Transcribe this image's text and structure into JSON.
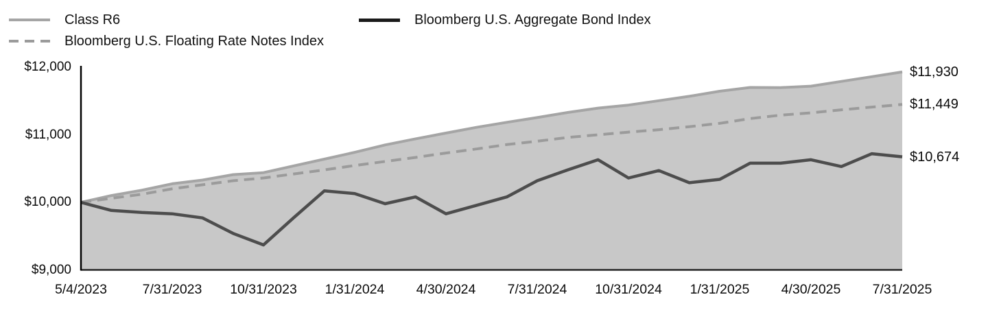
{
  "legend": {
    "items": [
      {
        "label": "Class R6",
        "swatch": "solid-light"
      },
      {
        "label": "Bloomberg U.S. Floating Rate Notes Index",
        "swatch": "dashed"
      },
      {
        "label": "Bloomberg U.S. Aggregate Bond Index",
        "swatch": "solid-dark"
      }
    ]
  },
  "colors": {
    "area_fill": "#c8c8c8",
    "class_r6_line": "#a5a5a5",
    "floating_rate_line": "#9b9b9b",
    "aggregate_bond_line": "#4d4d4d",
    "y_axis_line": "#000000",
    "x_axis_line": "#262626",
    "text": "#0a0a0a"
  },
  "chart_data": {
    "type": "area",
    "title": "",
    "xlabel": "",
    "ylabel": "",
    "ylim": [
      9000,
      12000
    ],
    "grid": false,
    "legend_position": "top-left",
    "x": [
      "5/4/2023",
      "5/31/2023",
      "6/30/2023",
      "7/31/2023",
      "8/31/2023",
      "9/30/2023",
      "10/31/2023",
      "11/30/2023",
      "12/31/2023",
      "1/31/2024",
      "2/29/2024",
      "3/31/2024",
      "4/30/2024",
      "5/31/2024",
      "6/30/2024",
      "7/31/2024",
      "8/31/2024",
      "9/30/2024",
      "10/31/2024",
      "11/30/2024",
      "12/31/2024",
      "1/31/2025",
      "2/28/2025",
      "3/31/2025",
      "4/30/2025",
      "5/31/2025",
      "6/30/2025",
      "7/31/2025"
    ],
    "x_tick_indices": [
      0,
      3,
      6,
      9,
      12,
      15,
      18,
      21,
      24,
      27
    ],
    "x_tick_labels": [
      "5/4/2023",
      "7/31/2023",
      "10/31/2023",
      "1/31/2024",
      "4/30/2024",
      "7/31/2024",
      "10/31/2024",
      "1/31/2025",
      "4/30/2025",
      "7/31/2025"
    ],
    "y_ticks": [
      12000,
      11000,
      10000,
      9000
    ],
    "y_tick_labels": [
      "$12,000",
      "$11,000",
      "$10,000",
      "$9,000"
    ],
    "series": [
      {
        "name": "Class R6",
        "style": "area-line",
        "color": "#a5a5a5",
        "fill": "#c8c8c8",
        "end_label": "$11,930",
        "values": [
          10000,
          10100,
          10180,
          10275,
          10330,
          10410,
          10440,
          10540,
          10640,
          10740,
          10850,
          10940,
          11025,
          11110,
          11185,
          11255,
          11330,
          11395,
          11440,
          11505,
          11570,
          11645,
          11700,
          11698,
          11720,
          11790,
          11860,
          11930
        ]
      },
      {
        "name": "Bloomberg U.S. Floating Rate Notes Index",
        "style": "dashed",
        "color": "#9b9b9b",
        "end_label": "$11,449",
        "values": [
          10000,
          10060,
          10120,
          10200,
          10260,
          10320,
          10360,
          10420,
          10480,
          10545,
          10605,
          10665,
          10730,
          10790,
          10855,
          10905,
          10960,
          11000,
          11040,
          11075,
          11120,
          11170,
          11240,
          11290,
          11325,
          11370,
          11410,
          11449
        ]
      },
      {
        "name": "Bloomberg U.S. Aggregate Bond Index",
        "style": "solid",
        "color": "#4d4d4d",
        "end_label": "$10,674",
        "values": [
          10000,
          9880,
          9850,
          9830,
          9770,
          9540,
          9370,
          9775,
          10170,
          10130,
          9980,
          10080,
          9830,
          9955,
          10080,
          10320,
          10480,
          10630,
          10360,
          10470,
          10290,
          10340,
          10580,
          10580,
          10630,
          10530,
          10720,
          10674
        ]
      }
    ]
  }
}
